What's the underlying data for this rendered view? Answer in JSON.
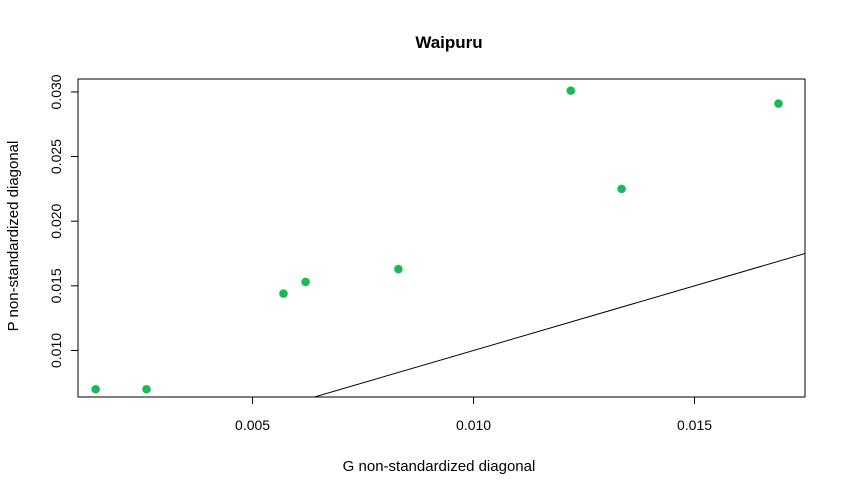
{
  "chart_data": {
    "type": "scatter",
    "title": "Waipuru",
    "xlabel": "G non-standardized diagonal",
    "ylabel": "P non-standardized diagonal",
    "xlim": [
      0.00105,
      0.0175
    ],
    "ylim": [
      0.0064,
      0.031
    ],
    "xticks": [
      0.005,
      0.01,
      0.015
    ],
    "xtick_labels": [
      "0.005",
      "0.010",
      "0.015"
    ],
    "yticks": [
      0.01,
      0.015,
      0.02,
      0.025,
      0.03
    ],
    "ytick_labels": [
      "0.010",
      "0.015",
      "0.020",
      "0.025",
      "0.030"
    ],
    "point_color": "#1db954",
    "points": [
      {
        "x": 0.00145,
        "y": 0.007
      },
      {
        "x": 0.0026,
        "y": 0.007
      },
      {
        "x": 0.0057,
        "y": 0.0144
      },
      {
        "x": 0.0062,
        "y": 0.0153
      },
      {
        "x": 0.0083,
        "y": 0.0163
      },
      {
        "x": 0.0122,
        "y": 0.0301
      },
      {
        "x": 0.01335,
        "y": 0.0225
      },
      {
        "x": 0.0169,
        "y": 0.0291
      }
    ],
    "reference_line": {
      "intercept": 0,
      "slope": 1
    },
    "grid": false,
    "legend": "none"
  }
}
